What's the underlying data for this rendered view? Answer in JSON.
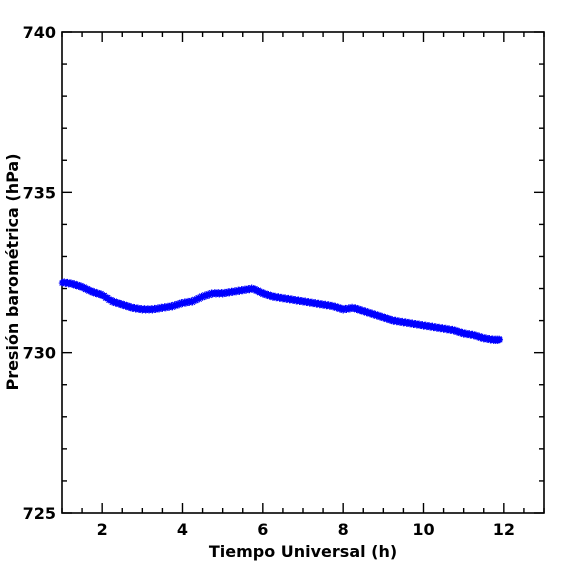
{
  "chart_data": {
    "type": "scatter",
    "title": "",
    "xlabel": "Tiempo Universal (h)",
    "ylabel": "Presión barométrica (hPa)",
    "xlim": [
      1,
      13
    ],
    "ylim": [
      725,
      740
    ],
    "xticks": [
      2,
      4,
      6,
      8,
      10,
      12
    ],
    "xtick_labels": [
      "2",
      "4",
      "6",
      "8",
      "10",
      "12"
    ],
    "yticks": [
      725,
      730,
      735,
      740
    ],
    "ytick_labels": [
      "725",
      "730",
      "735",
      "740"
    ],
    "grid": false,
    "legend": "none",
    "marker": "star",
    "color": "#0000ff",
    "series": [
      {
        "x": [
          1.0,
          1.25,
          1.5,
          1.75,
          2.0,
          2.25,
          2.5,
          2.75,
          3.0,
          3.25,
          3.5,
          3.75,
          4.0,
          4.25,
          4.5,
          4.75,
          5.0,
          5.25,
          5.5,
          5.75,
          6.0,
          6.25,
          6.5,
          6.75,
          7.0,
          7.25,
          7.5,
          7.75,
          8.0,
          8.25,
          8.5,
          8.75,
          9.0,
          9.25,
          9.5,
          9.75,
          10.0,
          10.25,
          10.5,
          10.75,
          11.0,
          11.25,
          11.5,
          11.75,
          11.9
        ],
        "y": [
          732.2,
          732.15,
          732.05,
          731.9,
          731.8,
          731.6,
          731.5,
          731.4,
          731.35,
          731.35,
          731.4,
          731.45,
          731.55,
          731.6,
          731.75,
          731.85,
          731.85,
          731.9,
          731.95,
          732.0,
          731.85,
          731.75,
          731.7,
          731.65,
          731.6,
          731.55,
          731.5,
          731.45,
          731.35,
          731.4,
          731.3,
          731.2,
          731.1,
          731.0,
          730.95,
          730.9,
          730.85,
          730.8,
          730.75,
          730.7,
          730.6,
          730.55,
          730.45,
          730.4,
          730.4
        ]
      }
    ]
  }
}
